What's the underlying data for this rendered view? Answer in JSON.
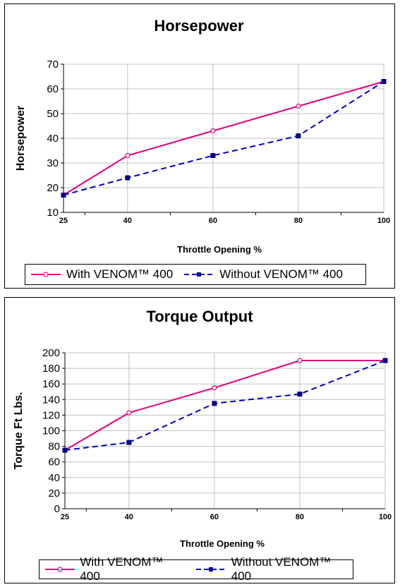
{
  "chart_data": [
    {
      "type": "line",
      "title": "Horsepower",
      "xlabel": "Throttle Opening %",
      "ylabel": "Horsepower",
      "categories": [
        25,
        40,
        60,
        80,
        100
      ],
      "ylim": [
        10,
        70
      ],
      "yticks": [
        10,
        20,
        30,
        40,
        50,
        60,
        70
      ],
      "grid": true,
      "legend_position": "bottom",
      "series": [
        {
          "name": "With VENOM™ 400",
          "color": "#e0007a",
          "marker": "circle-open",
          "line": "solid",
          "values": [
            17,
            33,
            43,
            53,
            63
          ]
        },
        {
          "name": "Without VENOM™ 400",
          "color": "#0000cc",
          "marker": "square",
          "line": "dashed",
          "values": [
            17,
            24,
            33,
            41,
            63
          ]
        }
      ]
    },
    {
      "type": "line",
      "title": "Torque Output",
      "xlabel": "Throttle Opening %",
      "ylabel": "Torque Ft Lbs.",
      "categories": [
        25,
        40,
        60,
        80,
        100
      ],
      "ylim": [
        0,
        200
      ],
      "yticks": [
        0,
        20,
        40,
        60,
        80,
        100,
        120,
        140,
        160,
        180,
        200
      ],
      "grid": true,
      "legend_position": "bottom",
      "series": [
        {
          "name": "With VENOM™ 400",
          "color": "#e0007a",
          "marker": "circle-open",
          "line": "solid",
          "values": [
            75,
            123,
            155,
            190,
            190
          ]
        },
        {
          "name": "Without VENOM™ 400",
          "color": "#0000cc",
          "marker": "square",
          "line": "dashed",
          "values": [
            75,
            85,
            135,
            147,
            190
          ]
        }
      ]
    }
  ]
}
